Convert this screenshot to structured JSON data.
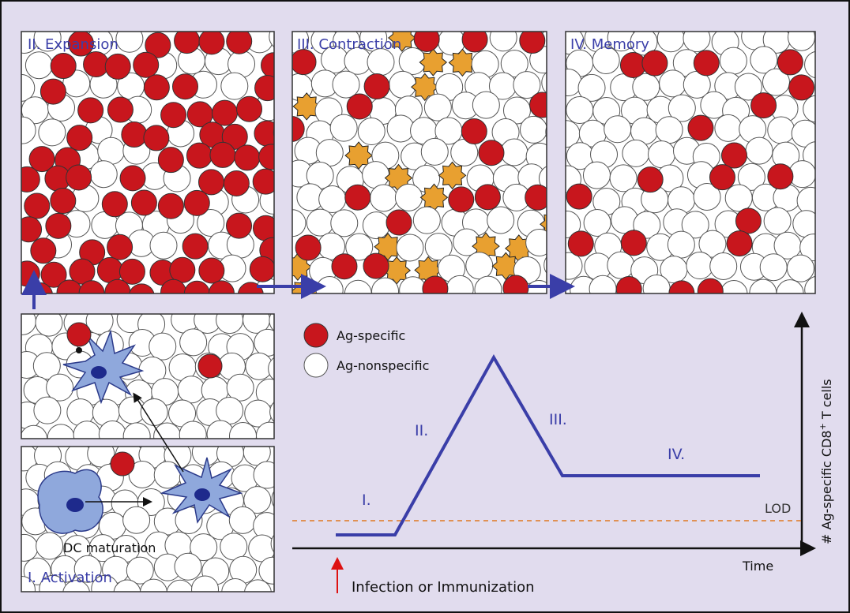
{
  "panels": {
    "expansion": "II. Expansion",
    "contraction": "III. Contraction",
    "memory": "IV. Memory",
    "activation": "I. Activation",
    "dc_maturation": "DC maturation"
  },
  "legend": {
    "specific": "Ag-specific",
    "nonspecific": "Ag-nonspecific"
  },
  "graph": {
    "phase_labels": [
      "I.",
      "II.",
      "III.",
      "IV."
    ],
    "lod": "LOD",
    "x_axis": "Time",
    "y_axis": {
      "main": "# Ag-specific CD8",
      "superscript": "+",
      "rest": " T cells"
    },
    "event": "Infection or Immunization"
  }
}
